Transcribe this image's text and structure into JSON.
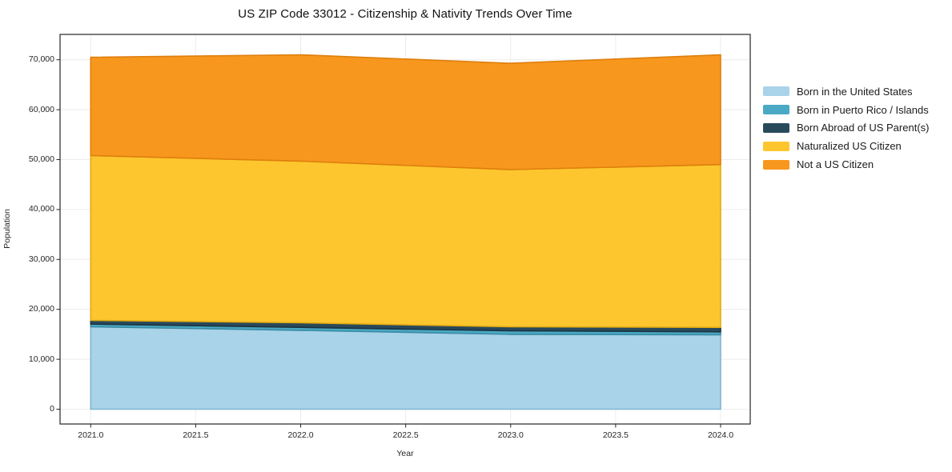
{
  "title": "US ZIP Code 33012 - Citizenship & Nativity Trends Over Time",
  "chart_data": {
    "type": "area",
    "stacked": true,
    "title": "US ZIP Code 33012 - Citizenship & Nativity Trends Over Time",
    "xlabel": "Year",
    "ylabel": "Population",
    "x": [
      2021,
      2022,
      2023,
      2024
    ],
    "series": [
      {
        "name": "Born in the United States",
        "color": "#a8d3e9",
        "edge": "#7fb6d3",
        "values": [
          16500,
          15800,
          15000,
          14900
        ]
      },
      {
        "name": "Born in Puerto Rico / Islands",
        "color": "#4aa9c4",
        "edge": "#3a8ba3",
        "values": [
          550,
          600,
          700,
          600
        ]
      },
      {
        "name": "Born Abroad of US Parent(s)",
        "color": "#29495c",
        "edge": "#1c3440",
        "values": [
          750,
          900,
          800,
          900
        ]
      },
      {
        "name": "Naturalized US Citizen",
        "color": "#fdc62e",
        "edge": "#e2ab12",
        "values": [
          33000,
          32400,
          31500,
          32600
        ]
      },
      {
        "name": "Not a US Citizen",
        "color": "#f8971d",
        "edge": "#de7f0d",
        "values": [
          19700,
          21300,
          21300,
          22000
        ]
      }
    ],
    "totals": [
      70500,
      71000,
      69300,
      71000
    ],
    "xticks": [
      2021.0,
      2021.5,
      2022.0,
      2022.5,
      2023.0,
      2023.5,
      2024.0
    ],
    "x_tick_labels": [
      "2021.0",
      "2021.5",
      "2022.0",
      "2022.5",
      "2023.0",
      "2023.5",
      "2024.0"
    ],
    "yticks": [
      0,
      10000,
      20000,
      30000,
      40000,
      50000,
      60000,
      70000
    ],
    "y_tick_labels": [
      "0",
      "10,000",
      "20,000",
      "30,000",
      "40,000",
      "50,000",
      "60,000",
      "70,000"
    ],
    "xlim": [
      2020.85,
      2024.15
    ],
    "ylim": [
      -3500,
      75000
    ],
    "grid": true,
    "grid_color": "#ececec",
    "spine_color": "#262626",
    "legend_position": "right-outside",
    "background_color": "#ffffff"
  }
}
